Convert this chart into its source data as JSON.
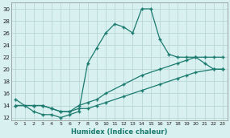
{
  "line1_x": [
    0,
    1,
    2,
    3,
    4,
    5,
    6,
    7,
    8,
    9,
    10,
    11,
    12,
    13,
    14,
    15,
    16,
    17,
    18,
    19,
    20,
    21,
    22,
    23
  ],
  "line1_y": [
    15,
    14,
    13,
    12.5,
    12.5,
    12,
    12.5,
    13,
    21,
    23.5,
    26,
    27.5,
    27,
    26,
    30,
    30,
    25,
    22.5,
    22,
    22,
    22,
    21,
    20,
    20
  ],
  "line2_x": [
    0,
    2,
    3,
    4,
    5,
    6,
    7,
    8,
    9,
    10,
    12,
    14,
    16,
    18,
    19,
    20,
    22,
    23
  ],
  "line2_y": [
    14,
    14,
    14,
    13.5,
    13,
    13,
    13.5,
    13.5,
    14,
    14.5,
    15.5,
    16.5,
    17.5,
    18.5,
    19,
    19.5,
    20,
    20
  ],
  "line3_x": [
    0,
    2,
    3,
    4,
    5,
    6,
    7,
    8,
    9,
    10,
    12,
    14,
    16,
    18,
    19,
    20,
    21,
    22,
    23
  ],
  "line3_y": [
    14,
    14,
    14,
    13.5,
    13,
    13,
    14,
    14.5,
    15,
    16,
    17.5,
    19,
    20,
    21,
    21.5,
    22,
    22,
    22,
    22
  ],
  "line_color": "#1a7a6e",
  "bg_color": "#d8f0f0",
  "grid_color": "#b8d8d8",
  "xlabel": "Humidex (Indice chaleur)",
  "xlim": [
    -0.5,
    23.5
  ],
  "ylim": [
    11.5,
    31
  ],
  "yticks": [
    12,
    14,
    16,
    18,
    20,
    22,
    24,
    26,
    28,
    30
  ],
  "xticks": [
    0,
    1,
    2,
    3,
    4,
    5,
    6,
    7,
    8,
    9,
    10,
    11,
    12,
    13,
    14,
    15,
    16,
    17,
    18,
    19,
    20,
    21,
    22,
    23
  ]
}
